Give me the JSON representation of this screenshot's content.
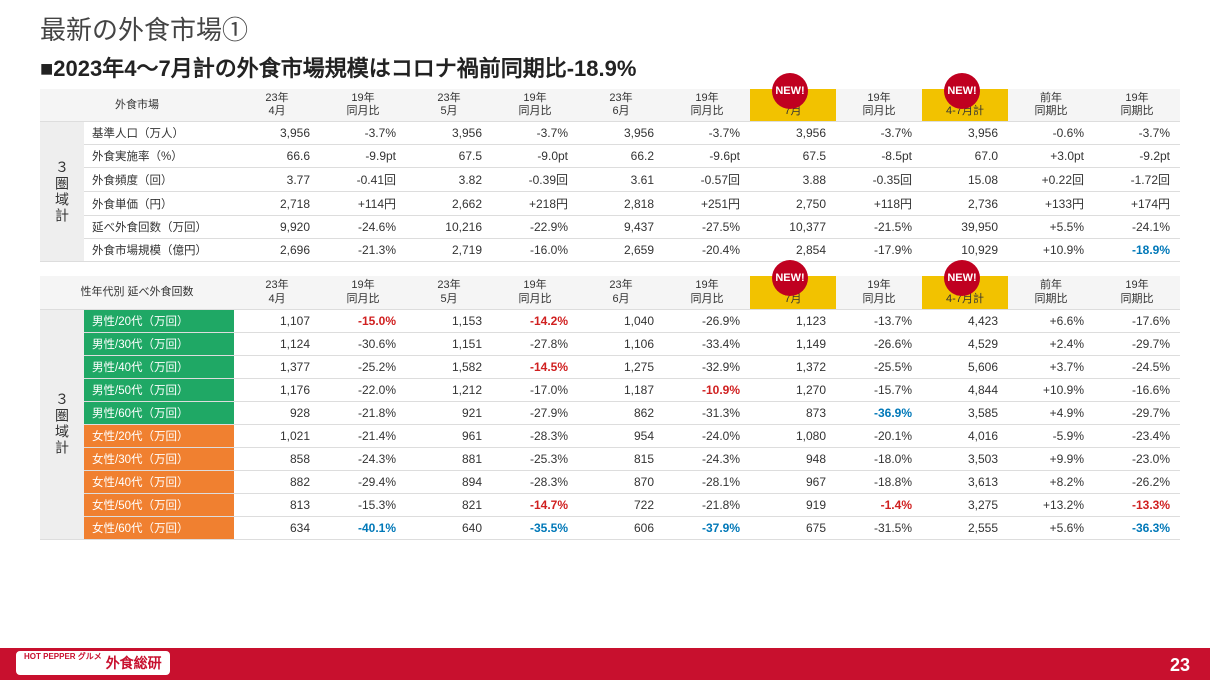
{
  "page": {
    "title": "最新の外食市場①",
    "subtitle": "■2023年4～7月計の外食市場規模はコロナ禍前同期比-18.9%",
    "page_num": "23",
    "logo_small": "HOT PEPPER グルメ",
    "logo_main": "外食総研",
    "new_badge": "NEW!"
  },
  "t1": {
    "corner": "外食市場",
    "side": "３圏域計",
    "cols": [
      "23年\n4月",
      "19年\n同月比",
      "23年\n5月",
      "19年\n同月比",
      "23年\n6月",
      "19年\n同月比",
      "23年\n7月",
      "19年\n同月比",
      "23年\n4-7月計",
      "前年\n同期比",
      "19年\n同期比"
    ],
    "rows": [
      {
        "label": "基準人口（万人）",
        "v": [
          "3,956",
          "-3.7%",
          "3,956",
          "-3.7%",
          "3,956",
          "-3.7%",
          "3,956",
          "-3.7%",
          "3,956",
          "-0.6%",
          "-3.7%"
        ]
      },
      {
        "label": "外食実施率（%）",
        "v": [
          "66.6",
          "-9.9pt",
          "67.5",
          "-9.0pt",
          "66.2",
          "-9.6pt",
          "67.5",
          "-8.5pt",
          "67.0",
          "+3.0pt",
          "-9.2pt"
        ]
      },
      {
        "label": "外食頻度（回）",
        "v": [
          "3.77",
          "-0.41回",
          "3.82",
          "-0.39回",
          "3.61",
          "-0.57回",
          "3.88",
          "-0.35回",
          "15.08",
          "+0.22回",
          "-1.72回"
        ]
      },
      {
        "label": "外食単価（円）",
        "v": [
          "2,718",
          "+114円",
          "2,662",
          "+218円",
          "2,818",
          "+251円",
          "2,750",
          "+118円",
          "2,736",
          "+133円",
          "+174円"
        ]
      },
      {
        "label": "延べ外食回数（万回）",
        "v": [
          "9,920",
          "-24.6%",
          "10,216",
          "-22.9%",
          "9,437",
          "-27.5%",
          "10,377",
          "-21.5%",
          "39,950",
          "+5.5%",
          "-24.1%"
        ]
      },
      {
        "label": "外食市場規模（億円）",
        "v": [
          "2,696",
          "-21.3%",
          "2,719",
          "-16.0%",
          "2,659",
          "-20.4%",
          "2,854",
          "-17.9%",
          "10,929",
          "+10.9%",
          {
            "t": "-18.9%",
            "c": "neg-blue"
          }
        ]
      }
    ]
  },
  "t2": {
    "corner": "性年代別 延べ外食回数",
    "side": "３圏域計",
    "cols": [
      "23年\n4月",
      "19年\n同月比",
      "23年\n5月",
      "19年\n同月比",
      "23年\n6月",
      "19年\n同月比",
      "23年\n7月",
      "19年\n同月比",
      "23年\n4-7月計",
      "前年\n同期比",
      "19年\n同期比"
    ],
    "rows": [
      {
        "label": "男性/20代（万回）",
        "lc": "green",
        "v": [
          "1,107",
          {
            "t": "-15.0%",
            "c": "neg-red"
          },
          "1,153",
          {
            "t": "-14.2%",
            "c": "neg-red"
          },
          "1,040",
          "-26.9%",
          "1,123",
          "-13.7%",
          "4,423",
          "+6.6%",
          "-17.6%"
        ]
      },
      {
        "label": "男性/30代（万回）",
        "lc": "green",
        "v": [
          "1,124",
          "-30.6%",
          "1,151",
          "-27.8%",
          "1,106",
          "-33.4%",
          "1,149",
          "-26.6%",
          "4,529",
          "+2.4%",
          "-29.7%"
        ]
      },
      {
        "label": "男性/40代（万回）",
        "lc": "green",
        "v": [
          "1,377",
          "-25.2%",
          "1,582",
          {
            "t": "-14.5%",
            "c": "neg-red"
          },
          "1,275",
          "-32.9%",
          "1,372",
          "-25.5%",
          "5,606",
          "+3.7%",
          "-24.5%"
        ]
      },
      {
        "label": "男性/50代（万回）",
        "lc": "green",
        "v": [
          "1,176",
          "-22.0%",
          "1,212",
          "-17.0%",
          "1,187",
          {
            "t": "-10.9%",
            "c": "neg-red"
          },
          "1,270",
          "-15.7%",
          "4,844",
          "+10.9%",
          "-16.6%"
        ]
      },
      {
        "label": "男性/60代（万回）",
        "lc": "green",
        "v": [
          "928",
          "-21.8%",
          "921",
          "-27.9%",
          "862",
          "-31.3%",
          "873",
          {
            "t": "-36.9%",
            "c": "neg-blue"
          },
          "3,585",
          "+4.9%",
          "-29.7%"
        ]
      },
      {
        "label": "女性/20代（万回）",
        "lc": "orange",
        "v": [
          "1,021",
          "-21.4%",
          "961",
          "-28.3%",
          "954",
          "-24.0%",
          "1,080",
          "-20.1%",
          "4,016",
          "-5.9%",
          "-23.4%"
        ]
      },
      {
        "label": "女性/30代（万回）",
        "lc": "orange",
        "v": [
          "858",
          "-24.3%",
          "881",
          "-25.3%",
          "815",
          "-24.3%",
          "948",
          "-18.0%",
          "3,503",
          "+9.9%",
          "-23.0%"
        ]
      },
      {
        "label": "女性/40代（万回）",
        "lc": "orange",
        "v": [
          "882",
          "-29.4%",
          "894",
          "-28.3%",
          "870",
          "-28.1%",
          "967",
          "-18.8%",
          "3,613",
          "+8.2%",
          "-26.2%"
        ]
      },
      {
        "label": "女性/50代（万回）",
        "lc": "orange",
        "v": [
          "813",
          "-15.3%",
          "821",
          {
            "t": "-14.7%",
            "c": "neg-red"
          },
          "722",
          "-21.8%",
          "919",
          {
            "t": "-1.4%",
            "c": "neg-red"
          },
          "3,275",
          "+13.2%",
          {
            "t": "-13.3%",
            "c": "neg-red"
          }
        ]
      },
      {
        "label": "女性/60代（万回）",
        "lc": "orange",
        "v": [
          "634",
          {
            "t": "-40.1%",
            "c": "neg-blue"
          },
          "640",
          {
            "t": "-35.5%",
            "c": "neg-blue"
          },
          "606",
          {
            "t": "-37.9%",
            "c": "neg-blue"
          },
          "675",
          "-31.5%",
          "2,555",
          "+5.6%",
          {
            "t": "-36.3%",
            "c": "neg-blue"
          }
        ]
      }
    ]
  }
}
